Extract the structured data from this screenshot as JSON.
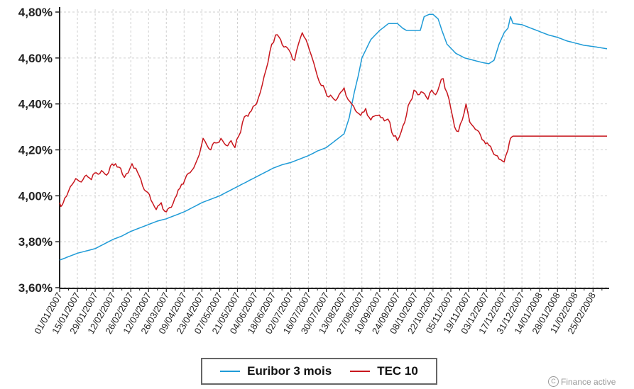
{
  "chart_data": {
    "type": "line",
    "title": "",
    "xlabel": "",
    "ylabel": "",
    "ylim": [
      3.6,
      4.8
    ],
    "y_tick_labels": [
      "3,60%",
      "3,80%",
      "4,00%",
      "4,20%",
      "4,40%",
      "4,60%",
      "4,80%"
    ],
    "x_start": "2007-01-01",
    "x_end": "2008-03-07",
    "x_tick_labels": [
      "01/01/2007",
      "15/01/2007",
      "29/01/2007",
      "12/02/2007",
      "26/02/2007",
      "12/03/2007",
      "26/03/2007",
      "09/04/2007",
      "23/04/2007",
      "07/05/2007",
      "21/05/2007",
      "04/06/2007",
      "18/06/2007",
      "02/07/2007",
      "16/07/2007",
      "30/07/2007",
      "13/08/2007",
      "27/08/2007",
      "10/09/2007",
      "24/09/2007",
      "08/10/2007",
      "22/10/2007",
      "05/11/2007",
      "19/11/2007",
      "03/12/2007",
      "17/12/2007",
      "31/12/2007",
      "14/01/2008",
      "28/01/2008",
      "11/02/2008",
      "25/02/2008"
    ],
    "grid": true,
    "legend_position": "bottom",
    "series": [
      {
        "name": "Euribor 3 mois",
        "color": "#1f9bd7",
        "points": [
          [
            "2007-01-01",
            3.72
          ],
          [
            "2007-01-08",
            3.735
          ],
          [
            "2007-01-15",
            3.75
          ],
          [
            "2007-01-22",
            3.76
          ],
          [
            "2007-01-29",
            3.77
          ],
          [
            "2007-02-05",
            3.79
          ],
          [
            "2007-02-12",
            3.81
          ],
          [
            "2007-02-19",
            3.825
          ],
          [
            "2007-02-26",
            3.845
          ],
          [
            "2007-03-05",
            3.86
          ],
          [
            "2007-03-12",
            3.875
          ],
          [
            "2007-03-19",
            3.89
          ],
          [
            "2007-03-26",
            3.9
          ],
          [
            "2007-04-02",
            3.915
          ],
          [
            "2007-04-09",
            3.93
          ],
          [
            "2007-04-16",
            3.95
          ],
          [
            "2007-04-23",
            3.97
          ],
          [
            "2007-04-30",
            3.985
          ],
          [
            "2007-05-07",
            4.0
          ],
          [
            "2007-05-14",
            4.02
          ],
          [
            "2007-05-21",
            4.04
          ],
          [
            "2007-05-28",
            4.06
          ],
          [
            "2007-06-04",
            4.08
          ],
          [
            "2007-06-11",
            4.1
          ],
          [
            "2007-06-18",
            4.12
          ],
          [
            "2007-06-25",
            4.135
          ],
          [
            "2007-07-02",
            4.145
          ],
          [
            "2007-07-09",
            4.16
          ],
          [
            "2007-07-16",
            4.175
          ],
          [
            "2007-07-23",
            4.195
          ],
          [
            "2007-07-30",
            4.21
          ],
          [
            "2007-08-06",
            4.24
          ],
          [
            "2007-08-13",
            4.27
          ],
          [
            "2007-08-17",
            4.34
          ],
          [
            "2007-08-21",
            4.45
          ],
          [
            "2007-08-24",
            4.52
          ],
          [
            "2007-08-27",
            4.6
          ],
          [
            "2007-09-03",
            4.68
          ],
          [
            "2007-09-10",
            4.72
          ],
          [
            "2007-09-17",
            4.75
          ],
          [
            "2007-09-24",
            4.75
          ],
          [
            "2007-09-28",
            4.73
          ],
          [
            "2007-10-01",
            4.72
          ],
          [
            "2007-10-08",
            4.72
          ],
          [
            "2007-10-12",
            4.72
          ],
          [
            "2007-10-15",
            4.78
          ],
          [
            "2007-10-19",
            4.79
          ],
          [
            "2007-10-22",
            4.79
          ],
          [
            "2007-10-26",
            4.77
          ],
          [
            "2007-10-29",
            4.72
          ],
          [
            "2007-11-02",
            4.66
          ],
          [
            "2007-11-09",
            4.62
          ],
          [
            "2007-11-16",
            4.6
          ],
          [
            "2007-11-23",
            4.59
          ],
          [
            "2007-11-30",
            4.58
          ],
          [
            "2007-12-05",
            4.575
          ],
          [
            "2007-12-09",
            4.59
          ],
          [
            "2007-12-13",
            4.66
          ],
          [
            "2007-12-17",
            4.71
          ],
          [
            "2007-12-20",
            4.73
          ],
          [
            "2007-12-22",
            4.78
          ],
          [
            "2007-12-24",
            4.75
          ],
          [
            "2007-12-31",
            4.745
          ],
          [
            "2008-01-07",
            4.73
          ],
          [
            "2008-01-14",
            4.715
          ],
          [
            "2008-01-21",
            4.7
          ],
          [
            "2008-01-28",
            4.69
          ],
          [
            "2008-02-04",
            4.675
          ],
          [
            "2008-02-11",
            4.665
          ],
          [
            "2008-02-18",
            4.655
          ],
          [
            "2008-02-25",
            4.65
          ],
          [
            "2008-03-07",
            4.64
          ]
        ]
      },
      {
        "name": "TEC 10",
        "color": "#c8161d",
        "points": [
          [
            "2007-01-01",
            3.97
          ],
          [
            "2007-01-03",
            3.96
          ],
          [
            "2007-01-05",
            3.99
          ],
          [
            "2007-01-08",
            4.02
          ],
          [
            "2007-01-11",
            4.05
          ],
          [
            "2007-01-15",
            4.07
          ],
          [
            "2007-01-18",
            4.06
          ],
          [
            "2007-01-22",
            4.09
          ],
          [
            "2007-01-26",
            4.07
          ],
          [
            "2007-01-30",
            4.1
          ],
          [
            "2007-02-03",
            4.11
          ],
          [
            "2007-02-07",
            4.09
          ],
          [
            "2007-02-10",
            4.13
          ],
          [
            "2007-02-14",
            4.14
          ],
          [
            "2007-02-18",
            4.12
          ],
          [
            "2007-02-21",
            4.08
          ],
          [
            "2007-02-24",
            4.1
          ],
          [
            "2007-02-27",
            4.14
          ],
          [
            "2007-03-02",
            4.12
          ],
          [
            "2007-03-06",
            4.07
          ],
          [
            "2007-03-10",
            4.02
          ],
          [
            "2007-03-14",
            3.98
          ],
          [
            "2007-03-18",
            3.94
          ],
          [
            "2007-03-22",
            3.97
          ],
          [
            "2007-03-26",
            3.93
          ],
          [
            "2007-03-30",
            3.95
          ],
          [
            "2007-04-03",
            4.0
          ],
          [
            "2007-04-07",
            4.05
          ],
          [
            "2007-04-11",
            4.09
          ],
          [
            "2007-04-15",
            4.11
          ],
          [
            "2007-04-18",
            4.14
          ],
          [
            "2007-04-21",
            4.18
          ],
          [
            "2007-04-24",
            4.25
          ],
          [
            "2007-04-27",
            4.22
          ],
          [
            "2007-04-30",
            4.2
          ],
          [
            "2007-05-04",
            4.23
          ],
          [
            "2007-05-08",
            4.25
          ],
          [
            "2007-05-12",
            4.22
          ],
          [
            "2007-05-16",
            4.24
          ],
          [
            "2007-05-19",
            4.21
          ],
          [
            "2007-05-22",
            4.26
          ],
          [
            "2007-05-25",
            4.32
          ],
          [
            "2007-05-28",
            4.35
          ],
          [
            "2007-06-01",
            4.37
          ],
          [
            "2007-06-05",
            4.4
          ],
          [
            "2007-06-08",
            4.45
          ],
          [
            "2007-06-11",
            4.52
          ],
          [
            "2007-06-14",
            4.58
          ],
          [
            "2007-06-17",
            4.66
          ],
          [
            "2007-06-20",
            4.7
          ],
          [
            "2007-06-24",
            4.68
          ],
          [
            "2007-06-28",
            4.65
          ],
          [
            "2007-07-02",
            4.62
          ],
          [
            "2007-07-05",
            4.59
          ],
          [
            "2007-07-08",
            4.66
          ],
          [
            "2007-07-11",
            4.71
          ],
          [
            "2007-07-14",
            4.68
          ],
          [
            "2007-07-17",
            4.63
          ],
          [
            "2007-07-20",
            4.58
          ],
          [
            "2007-07-23",
            4.52
          ],
          [
            "2007-07-26",
            4.48
          ],
          [
            "2007-07-29",
            4.46
          ],
          [
            "2007-08-01",
            4.43
          ],
          [
            "2007-08-05",
            4.42
          ],
          [
            "2007-08-09",
            4.44
          ],
          [
            "2007-08-13",
            4.47
          ],
          [
            "2007-08-16",
            4.42
          ],
          [
            "2007-08-19",
            4.4
          ],
          [
            "2007-08-22",
            4.37
          ],
          [
            "2007-08-26",
            4.35
          ],
          [
            "2007-08-30",
            4.38
          ],
          [
            "2007-09-03",
            4.33
          ],
          [
            "2007-09-07",
            4.35
          ],
          [
            "2007-09-11",
            4.34
          ],
          [
            "2007-09-15",
            4.33
          ],
          [
            "2007-09-18",
            4.32
          ],
          [
            "2007-09-21",
            4.26
          ],
          [
            "2007-09-24",
            4.24
          ],
          [
            "2007-09-27",
            4.28
          ],
          [
            "2007-10-01",
            4.35
          ],
          [
            "2007-10-04",
            4.41
          ],
          [
            "2007-10-07",
            4.46
          ],
          [
            "2007-10-10",
            4.44
          ],
          [
            "2007-10-14",
            4.45
          ],
          [
            "2007-10-18",
            4.42
          ],
          [
            "2007-10-21",
            4.46
          ],
          [
            "2007-10-24",
            4.44
          ],
          [
            "2007-10-27",
            4.48
          ],
          [
            "2007-10-30",
            4.51
          ],
          [
            "2007-11-02",
            4.45
          ],
          [
            "2007-11-05",
            4.38
          ],
          [
            "2007-11-08",
            4.3
          ],
          [
            "2007-11-11",
            4.28
          ],
          [
            "2007-11-14",
            4.33
          ],
          [
            "2007-11-17",
            4.4
          ],
          [
            "2007-11-20",
            4.32
          ],
          [
            "2007-11-23",
            4.3
          ],
          [
            "2007-11-27",
            4.28
          ],
          [
            "2007-12-01",
            4.24
          ],
          [
            "2007-12-05",
            4.22
          ],
          [
            "2007-12-09",
            4.18
          ],
          [
            "2007-12-13",
            4.16
          ],
          [
            "2007-12-16",
            4.15
          ],
          [
            "2007-12-18",
            4.17
          ],
          [
            "2007-12-20",
            4.2
          ],
          [
            "2007-12-22",
            4.25
          ],
          [
            "2007-12-24",
            4.26
          ],
          [
            "2008-01-07",
            4.26
          ],
          [
            "2008-01-21",
            4.26
          ],
          [
            "2008-02-04",
            4.26
          ],
          [
            "2008-02-18",
            4.26
          ],
          [
            "2008-03-07",
            4.26
          ]
        ]
      }
    ]
  },
  "legend": {
    "euribor_label": "Euribor 3 mois",
    "tec_label": "TEC 10"
  },
  "watermark": {
    "icon": "copyright-icon",
    "text": "Finance active"
  }
}
